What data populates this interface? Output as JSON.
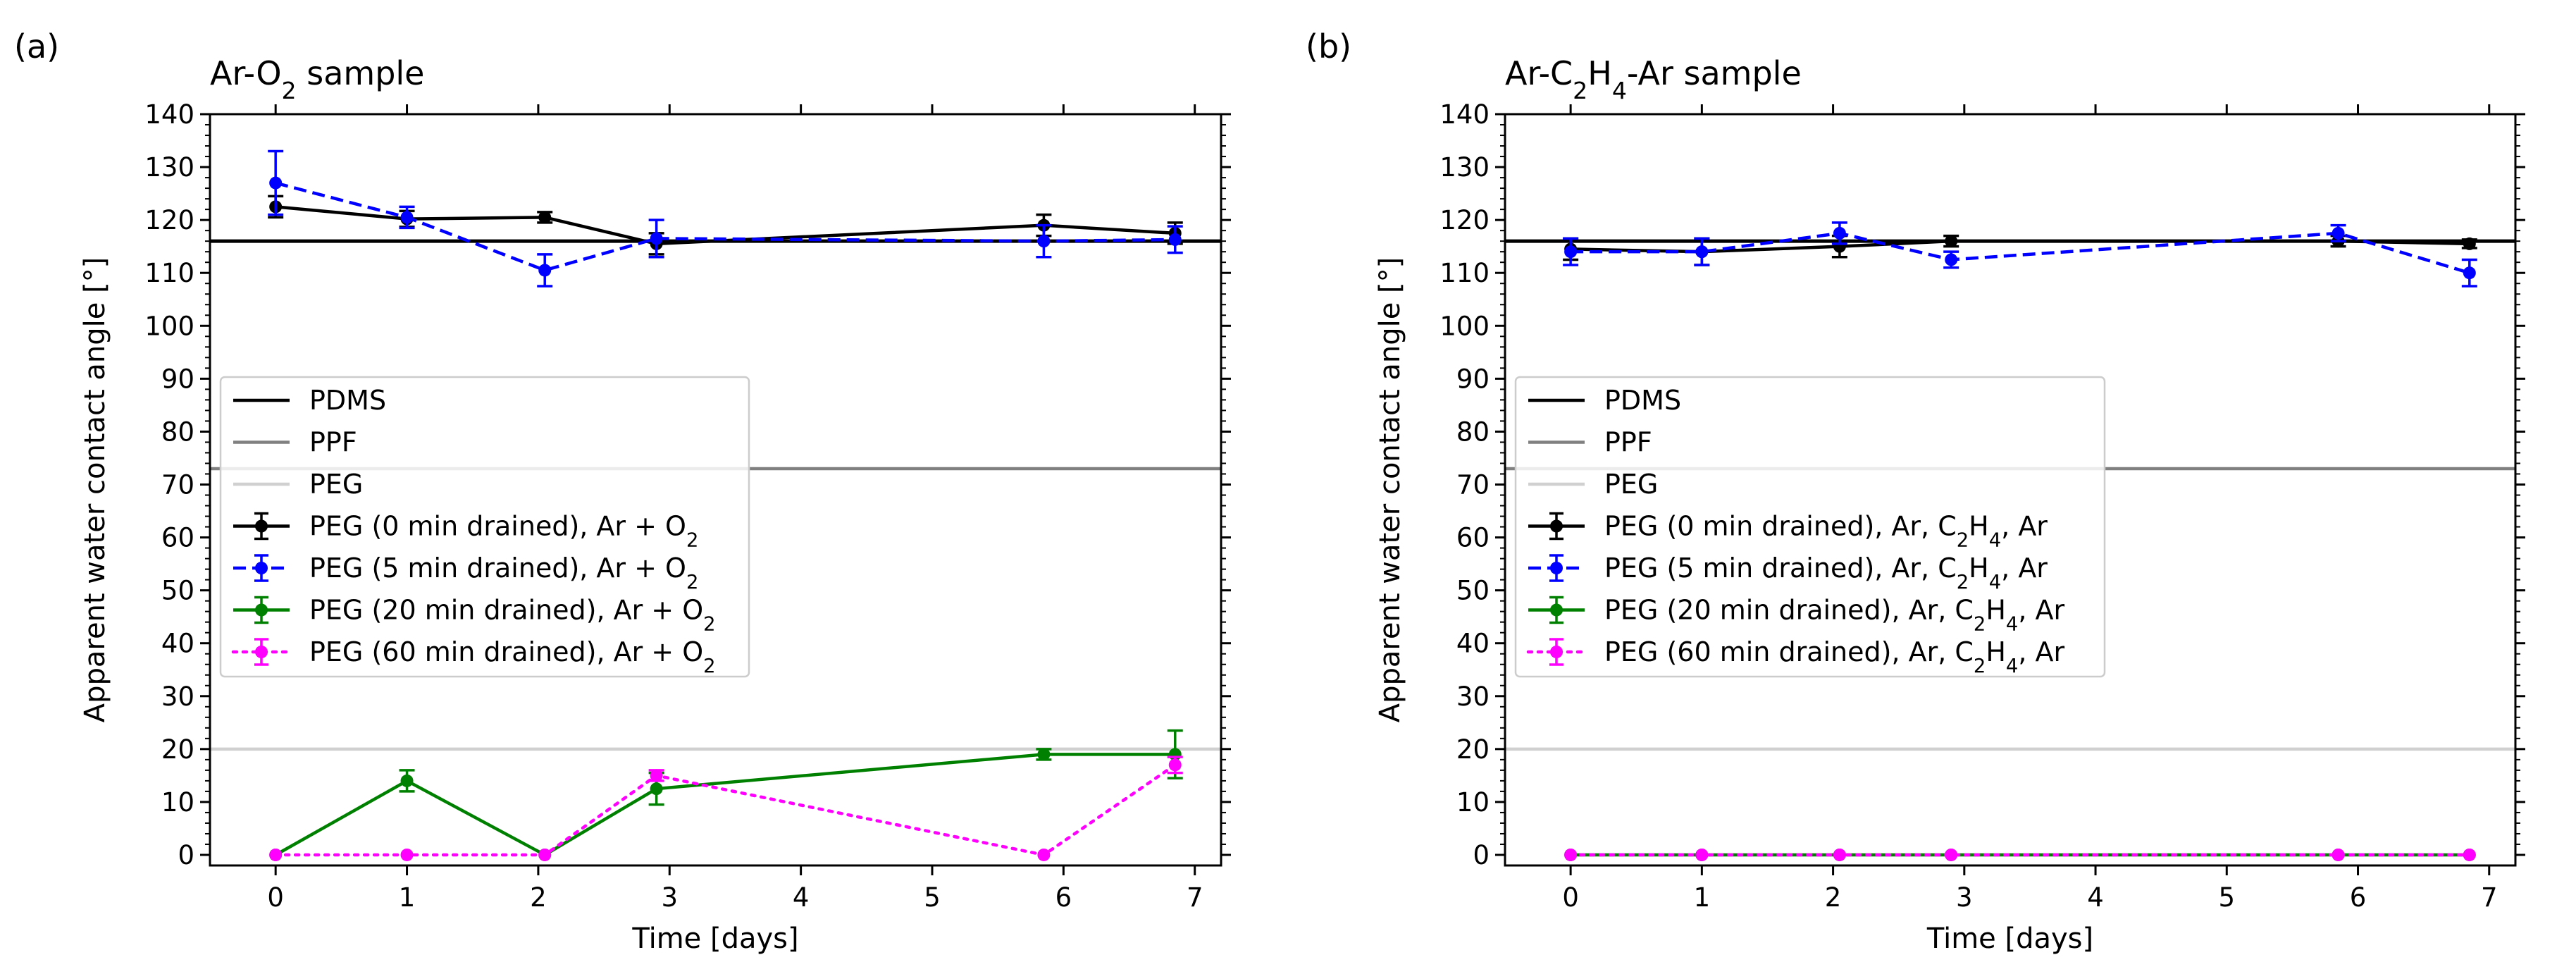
{
  "chart_data": [
    {
      "panel_label": "(a)",
      "type": "line",
      "title": "Ar-O₂ sample",
      "xlabel": "Time [days]",
      "ylabel": "Apparent water contact angle [°]",
      "xlim": [
        -0.5,
        7.2
      ],
      "ylim": [
        -2,
        140
      ],
      "xticks": [
        0,
        1,
        2,
        3,
        4,
        5,
        6,
        7
      ],
      "yticks": [
        0,
        10,
        20,
        30,
        40,
        50,
        60,
        70,
        80,
        90,
        100,
        110,
        120,
        130,
        140
      ],
      "legend_position": "center-left",
      "reference_lines": [
        {
          "name": "PDMS",
          "value": 116,
          "color": "#000000"
        },
        {
          "name": "PPF",
          "value": 73,
          "color": "#808080"
        },
        {
          "name": "PEG",
          "value": 20,
          "color": "#d0d0d0"
        }
      ],
      "series": [
        {
          "name": "PEG (0 min drained), Ar + O₂",
          "color": "#000000",
          "dash": "solid",
          "x": [
            0,
            1,
            2.05,
            2.9,
            5.85,
            6.85
          ],
          "y": [
            122.5,
            120.2,
            120.5,
            115.5,
            119,
            117.5
          ],
          "err": [
            2,
            1.5,
            1,
            2,
            2,
            2
          ]
        },
        {
          "name": "PEG (5 min drained), Ar + O₂",
          "color": "#0000ff",
          "dash": "dashed",
          "x": [
            0,
            1,
            2.05,
            2.9,
            5.85,
            6.85
          ],
          "y": [
            127,
            120.5,
            110.5,
            116.5,
            116,
            116.3
          ],
          "err": [
            6,
            2,
            3,
            3.5,
            3,
            2.5
          ]
        },
        {
          "name": "PEG (20 min drained), Ar + O₂",
          "color": "#008000",
          "dash": "solid",
          "x": [
            0,
            1,
            2.05,
            2.9,
            5.85,
            6.85
          ],
          "y": [
            0,
            14,
            0,
            12.5,
            19,
            19
          ],
          "err": [
            0,
            2,
            0,
            3,
            1,
            4.5
          ]
        },
        {
          "name": "PEG (60 min drained), Ar + O₂",
          "color": "#ff00ff",
          "dash": "dotted",
          "x": [
            0,
            1,
            2.05,
            2.9,
            5.85,
            6.85
          ],
          "y": [
            0,
            0,
            0,
            15,
            0,
            17
          ],
          "err": [
            0,
            0,
            0,
            1,
            0,
            1.5
          ]
        }
      ]
    },
    {
      "panel_label": "(b)",
      "type": "line",
      "title": "Ar-C₂H₄-Ar sample",
      "xlabel": "Time [days]",
      "ylabel": "Apparent water contact angle [°]",
      "xlim": [
        -0.5,
        7.2
      ],
      "ylim": [
        -2,
        140
      ],
      "xticks": [
        0,
        1,
        2,
        3,
        4,
        5,
        6,
        7
      ],
      "yticks": [
        0,
        10,
        20,
        30,
        40,
        50,
        60,
        70,
        80,
        90,
        100,
        110,
        120,
        130,
        140
      ],
      "legend_position": "center-left",
      "reference_lines": [
        {
          "name": "PDMS",
          "value": 116,
          "color": "#000000"
        },
        {
          "name": "PPF",
          "value": 73,
          "color": "#808080"
        },
        {
          "name": "PEG",
          "value": 20,
          "color": "#d0d0d0"
        }
      ],
      "series": [
        {
          "name": "PEG (0 min drained), Ar, C₂H₄, Ar",
          "color": "#000000",
          "dash": "solid",
          "x": [
            0,
            1,
            2.05,
            2.9,
            5.85,
            6.85
          ],
          "y": [
            114.5,
            114,
            115,
            116,
            116,
            115.5
          ],
          "err": [
            2,
            2.5,
            2,
            1,
            1,
            0.8
          ]
        },
        {
          "name": "PEG (5 min drained), Ar, C₂H₄, Ar",
          "color": "#0000ff",
          "dash": "dashed",
          "x": [
            0,
            1,
            2.05,
            2.9,
            5.85,
            6.85
          ],
          "y": [
            114,
            114,
            117.5,
            112.5,
            117.5,
            110
          ],
          "err": [
            2.5,
            2.5,
            2,
            1.5,
            1.5,
            2.5
          ]
        },
        {
          "name": "PEG (20 min drained), Ar, C₂H₄, Ar",
          "color": "#008000",
          "dash": "solid",
          "x": [
            0,
            1,
            2.05,
            2.9,
            5.85,
            6.85
          ],
          "y": [
            0,
            0,
            0,
            0,
            0,
            0
          ],
          "err": [
            0,
            0,
            0,
            0,
            0,
            0
          ]
        },
        {
          "name": "PEG (60 min drained), Ar, C₂H₄, Ar",
          "color": "#ff00ff",
          "dash": "dotted",
          "x": [
            0,
            1,
            2.05,
            2.9,
            5.85,
            6.85
          ],
          "y": [
            0,
            0,
            0,
            0,
            0,
            0
          ],
          "err": [
            0,
            0,
            0,
            0,
            0,
            0
          ]
        }
      ]
    }
  ]
}
